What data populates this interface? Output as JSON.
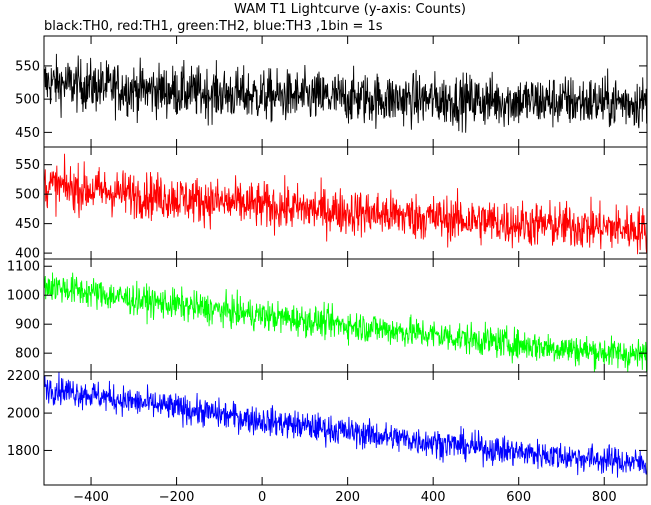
{
  "chart_data": {
    "type": "line",
    "title": "WAM T1 Lightcurve (y-axis: Counts)",
    "subtitle": "black:TH0, red:TH1, green:TH2, blue:TH3 ,1bin = 1s",
    "xlabel": "",
    "ylabel": "",
    "xlim": [
      -510,
      900
    ],
    "x_ticks": [
      -400,
      -200,
      0,
      200,
      400,
      600,
      800
    ],
    "x_tick_labels": [
      "−400",
      "−200",
      "0",
      "200",
      "400",
      "600",
      "800"
    ],
    "grid": false,
    "panels": [
      {
        "name": "TH0",
        "color": "#000000",
        "ylim": [
          428,
          595
        ],
        "y_ticks": [
          450,
          500,
          550
        ],
        "y_tick_labels": [
          "450",
          "500",
          "550"
        ],
        "trend": {
          "x": [
            -510,
            -300,
            0,
            300,
            600,
            900
          ],
          "y": [
            525,
            515,
            505,
            500,
            497,
            495
          ]
        },
        "noise_amplitude": 28
      },
      {
        "name": "TH1",
        "color": "#ff0000",
        "ylim": [
          390,
          580
        ],
        "y_ticks": [
          400,
          450,
          500,
          550
        ],
        "y_tick_labels": [
          "400",
          "450",
          "500",
          "550"
        ],
        "trend": {
          "x": [
            -510,
            -300,
            0,
            300,
            600,
            900
          ],
          "y": [
            515,
            500,
            480,
            465,
            450,
            440
          ]
        },
        "noise_amplitude": 28
      },
      {
        "name": "TH2",
        "color": "#00ff00",
        "ylim": [
          735,
          1125
        ],
        "y_ticks": [
          800,
          900,
          1000,
          1100
        ],
        "y_tick_labels": [
          "800",
          "900",
          "1000",
          "1100"
        ],
        "trend": {
          "x": [
            -510,
            -300,
            0,
            300,
            600,
            900
          ],
          "y": [
            1035,
            985,
            930,
            880,
            830,
            790
          ]
        },
        "noise_amplitude": 38
      },
      {
        "name": "TH3",
        "color": "#0000ff",
        "ylim": [
          1615,
          2220
        ],
        "y_ticks": [
          1800,
          2000,
          2200
        ],
        "y_tick_labels": [
          "1800",
          "2000",
          "2200"
        ],
        "trend": {
          "x": [
            -510,
            -300,
            0,
            300,
            600,
            900
          ],
          "y": [
            2140,
            2060,
            1960,
            1870,
            1790,
            1730
          ]
        },
        "noise_amplitude": 55
      }
    ]
  }
}
